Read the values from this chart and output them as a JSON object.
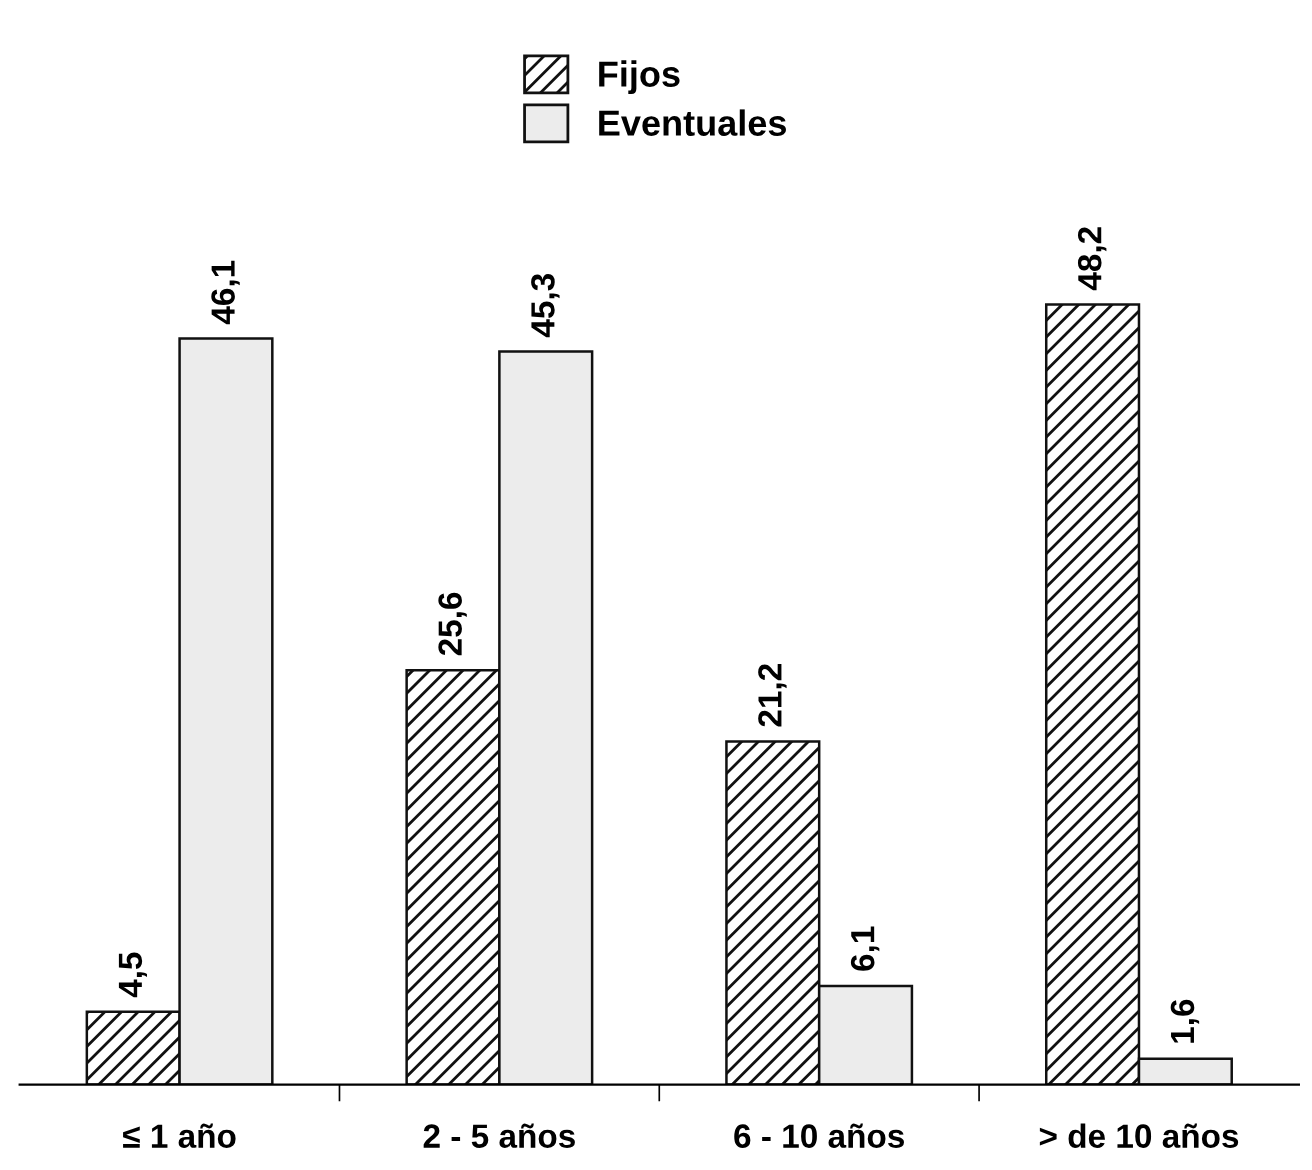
{
  "chart_data": {
    "type": "bar",
    "categories": [
      "≤ 1 año",
      "2 - 5 años",
      "6 - 10 años",
      "> de 10 años"
    ],
    "series": [
      {
        "name": "Fijos",
        "color": "#111111",
        "values": [
          4.5,
          25.6,
          21.2,
          48.2
        ],
        "value_labels": [
          "4,5",
          "25,6",
          "21,2",
          "48,2"
        ]
      },
      {
        "name": "Eventuales",
        "color": "#ececec",
        "values": [
          46.1,
          45.3,
          6.1,
          1.6
        ],
        "value_labels": [
          "46,1",
          "45,3",
          "6,1",
          "1,6"
        ]
      }
    ],
    "legend": "top",
    "grid": false
  }
}
